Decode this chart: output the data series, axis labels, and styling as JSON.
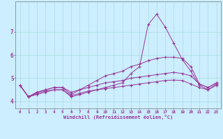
{
  "xlabel": "Windchill (Refroidissement éolien,°C)",
  "background_color": "#cceeff",
  "grid_color": "#aadddd",
  "line_color": "#993399",
  "xlim": [
    -0.5,
    23.5
  ],
  "ylim": [
    3.7,
    8.3
  ],
  "yticks": [
    4,
    5,
    6,
    7
  ],
  "xticks": [
    0,
    1,
    2,
    3,
    4,
    5,
    6,
    7,
    8,
    9,
    10,
    11,
    12,
    13,
    14,
    15,
    16,
    17,
    18,
    19,
    20,
    21,
    22,
    23
  ],
  "series": [
    [
      4.7,
      4.2,
      4.3,
      4.4,
      4.5,
      4.5,
      4.2,
      4.3,
      4.4,
      4.5,
      4.6,
      4.7,
      4.8,
      5.2,
      5.5,
      7.3,
      7.75,
      7.2,
      6.5,
      5.8,
      5.3,
      4.7,
      4.5,
      4.75
    ],
    [
      4.7,
      4.2,
      4.4,
      4.5,
      4.6,
      4.6,
      4.3,
      4.5,
      4.7,
      4.9,
      5.1,
      5.2,
      5.3,
      5.5,
      5.6,
      5.75,
      5.85,
      5.9,
      5.9,
      5.85,
      5.5,
      4.75,
      4.6,
      4.8
    ],
    [
      4.7,
      4.2,
      4.4,
      4.5,
      4.6,
      4.6,
      4.4,
      4.5,
      4.6,
      4.7,
      4.8,
      4.85,
      4.9,
      5.0,
      5.05,
      5.1,
      5.15,
      5.2,
      5.25,
      5.2,
      5.1,
      4.75,
      4.6,
      4.8
    ],
    [
      4.7,
      4.2,
      4.35,
      4.45,
      4.5,
      4.5,
      4.25,
      4.35,
      4.45,
      4.5,
      4.55,
      4.6,
      4.65,
      4.7,
      4.75,
      4.8,
      4.85,
      4.9,
      4.92,
      4.9,
      4.75,
      4.6,
      4.5,
      4.7
    ]
  ]
}
